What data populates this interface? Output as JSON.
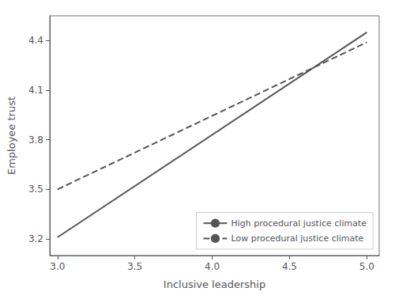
{
  "chart_data": {
    "type": "line",
    "x_label": "Inclusive leadership",
    "y_label": "Employee trust",
    "series": [
      {
        "name": "High procedural justice climate",
        "x": [
          3.0,
          5.0
        ],
        "values": [
          3.21,
          4.45
        ],
        "color": "#555555",
        "line_style": "solid"
      },
      {
        "name": "Low procedural justice climate",
        "x": [
          3.0,
          5.0
        ],
        "values": [
          3.5,
          4.39
        ],
        "color": "#555555",
        "line_style": "dashed"
      }
    ],
    "xlim": [
      2.95,
      5.08
    ],
    "ylim": [
      3.1,
      4.55
    ],
    "xticks": [
      {
        "value": 3.0,
        "label": "3.0"
      },
      3.5,
      {
        "value": 4.0,
        "label": "4.0"
      },
      4.5,
      {
        "value": 5.0,
        "label": "5.0"
      }
    ],
    "yticks": [
      3.2,
      3.5,
      3.8,
      4.1,
      4.4
    ],
    "grid": false,
    "legend": "lower right"
  }
}
